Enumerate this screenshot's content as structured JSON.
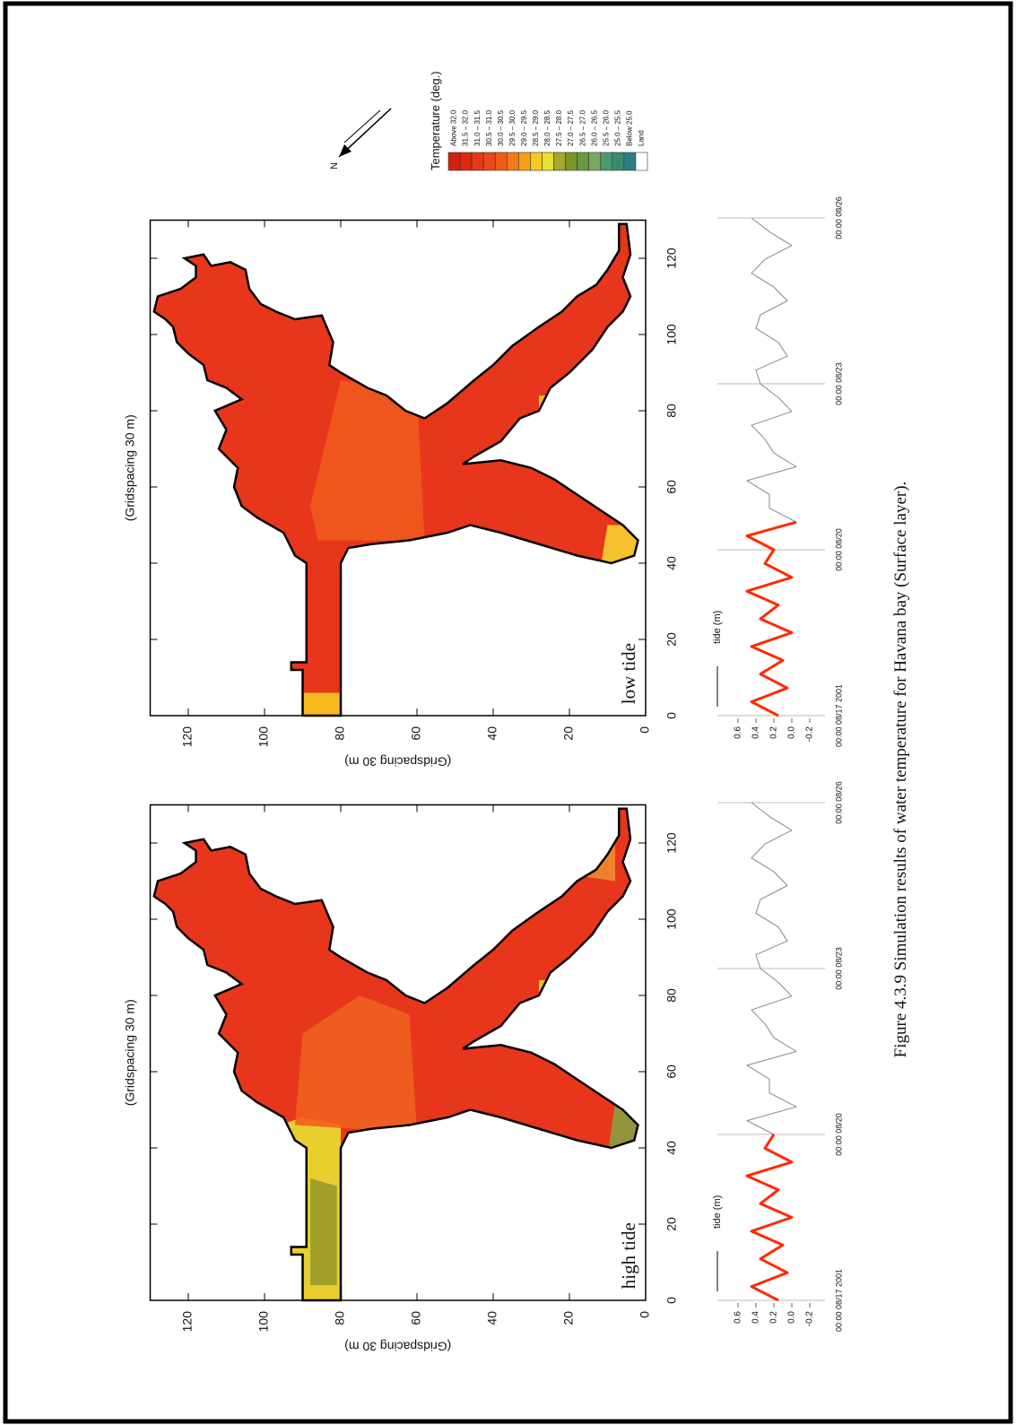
{
  "figure": {
    "panels": [
      {
        "label": "high tide",
        "xlabel": "(Gridspacing 30 m)",
        "ylabel": "(Gridspacing 30 m)",
        "xticks": [
          0,
          20,
          40,
          60,
          80,
          100,
          120
        ],
        "yticks": [
          0,
          20,
          40,
          60,
          80,
          100,
          120
        ]
      },
      {
        "label": "low tide",
        "xlabel": "(Gridspacing 30 m)",
        "ylabel": "(Gridspacing 30 m)",
        "xticks": [
          0,
          20,
          40,
          60,
          80,
          100,
          120
        ],
        "yticks": [
          0,
          20,
          40,
          60,
          80,
          100,
          120
        ]
      }
    ],
    "north": "N",
    "legend": {
      "title": "Temperature (deg.)",
      "items": [
        {
          "label": "Above 32.0",
          "color": "#d42010"
        },
        {
          "label": "31.5 – 32.0",
          "color": "#e02810"
        },
        {
          "label": "31.0 – 31.5",
          "color": "#e83818"
        },
        {
          "label": "30.5 – 31.0",
          "color": "#ec4818"
        },
        {
          "label": "30.0 – 30.5",
          "color": "#f05a18"
        },
        {
          "label": "29.5 – 30.0",
          "color": "#f47a18"
        },
        {
          "label": "29.0 – 29.5",
          "color": "#f8a018"
        },
        {
          "label": "28.5 – 29.0",
          "color": "#f8c820"
        },
        {
          "label": "28.0 – 28.5",
          "color": "#e8e030"
        },
        {
          "label": "27.5 – 28.0",
          "color": "#a8a828"
        },
        {
          "label": "27.0 – 27.5",
          "color": "#7a9628"
        },
        {
          "label": "26.5 – 27.0",
          "color": "#6a9a40"
        },
        {
          "label": "26.0 – 26.5",
          "color": "#7aa860"
        },
        {
          "label": "25.5 – 26.0",
          "color": "#4a9a70"
        },
        {
          "label": "25.0 – 25.5",
          "color": "#3a8a70"
        },
        {
          "label": "Below 25.0",
          "color": "#2a8080"
        },
        {
          "label": "Land",
          "color": "#ffffff"
        }
      ]
    },
    "caption": "Figure 4.3.9 Simulation results of water temperature for Havana bay (Surface layer)."
  },
  "chart_data": [
    {
      "type": "line",
      "ylabel": "tide (m)",
      "x": [
        0,
        0.25,
        0.5,
        0.75,
        1,
        1.25,
        1.5,
        1.75,
        2,
        2.25,
        2.5,
        2.75,
        3,
        3.25,
        3.5,
        3.75,
        4,
        4.25,
        4.5,
        4.75,
        5,
        5.25,
        5.5,
        5.75,
        6,
        6.25,
        6.5,
        6.75,
        7,
        7.25,
        7.5,
        7.75,
        8,
        8.25,
        8.5,
        8.75,
        9
      ],
      "xlim": [
        0,
        9
      ],
      "xticks": [
        {
          "value": 0,
          "label": "00:00 08/17 2001"
        },
        {
          "value": 3,
          "label": "00:00 08/20"
        },
        {
          "value": 6,
          "label": "00:00 08/23"
        },
        {
          "value": 9,
          "label": "00:00 08/26"
        }
      ],
      "ylim": [
        -0.25,
        0.65
      ],
      "yticks": [
        0.6,
        0.4,
        0.2,
        {
          "value": 0,
          "label": "0.0"
        },
        -0.2
      ],
      "series": [
        {
          "color": "#888888",
          "values": [
            0.15,
            0.45,
            0.05,
            0.35,
            0.1,
            0.45,
            0.0,
            0.35,
            0.15,
            0.5,
            0.0,
            0.3,
            0.2,
            0.5,
            -0.05,
            0.25,
            0.25,
            0.5,
            -0.05,
            0.2,
            0.3,
            0.45,
            0.0,
            0.15,
            0.35,
            0.4,
            0.05,
            0.15,
            0.4,
            0.35,
            0.05,
            0.2,
            0.45,
            0.3,
            0.0,
            0.25,
            0.45
          ]
        },
        {
          "color": "#ff2a00",
          "values": [
            0.15,
            0.45,
            0.05,
            0.35,
            0.1,
            0.45,
            0.0,
            0.35,
            0.15,
            0.5,
            0.0,
            0.3,
            0.2,
            null,
            null,
            null,
            null,
            null,
            null,
            null,
            null,
            null,
            null,
            null,
            null,
            null,
            null,
            null,
            null,
            null,
            null,
            null,
            null,
            null,
            null,
            null,
            null
          ]
        }
      ]
    },
    {
      "type": "line",
      "ylabel": "tide (m)",
      "x": [
        0,
        0.25,
        0.5,
        0.75,
        1,
        1.25,
        1.5,
        1.75,
        2,
        2.25,
        2.5,
        2.75,
        3,
        3.25,
        3.5,
        3.75,
        4,
        4.25,
        4.5,
        4.75,
        5,
        5.25,
        5.5,
        5.75,
        6,
        6.25,
        6.5,
        6.75,
        7,
        7.25,
        7.5,
        7.75,
        8,
        8.25,
        8.5,
        8.75,
        9
      ],
      "xlim": [
        0,
        9
      ],
      "xticks": [
        {
          "value": 0,
          "label": "00:00 08/17 2001"
        },
        {
          "value": 3,
          "label": "00:00 08/20"
        },
        {
          "value": 6,
          "label": "00:00 08/23"
        },
        {
          "value": 9,
          "label": "00:00 08/26"
        }
      ],
      "ylim": [
        -0.25,
        0.65
      ],
      "yticks": [
        0.6,
        0.4,
        0.2,
        {
          "value": 0,
          "label": "0.0"
        },
        -0.2
      ],
      "series": [
        {
          "color": "#888888",
          "values": [
            0.15,
            0.45,
            0.05,
            0.35,
            0.1,
            0.45,
            0.0,
            0.35,
            0.15,
            0.5,
            0.0,
            0.3,
            0.2,
            0.5,
            -0.05,
            0.25,
            0.25,
            0.5,
            -0.05,
            0.2,
            0.3,
            0.45,
            0.0,
            0.15,
            0.35,
            0.4,
            0.05,
            0.15,
            0.4,
            0.35,
            0.05,
            0.2,
            0.45,
            0.3,
            0.0,
            0.25,
            0.45
          ]
        },
        {
          "color": "#ff2a00",
          "values": [
            0.15,
            0.45,
            0.05,
            0.35,
            0.1,
            0.45,
            0.0,
            0.35,
            0.15,
            0.5,
            0.0,
            0.3,
            0.2,
            0.5,
            -0.05,
            null,
            null,
            null,
            null,
            null,
            null,
            null,
            null,
            null,
            null,
            null,
            null,
            null,
            null,
            null,
            null,
            null,
            null,
            null,
            null,
            null,
            null
          ]
        }
      ]
    }
  ]
}
